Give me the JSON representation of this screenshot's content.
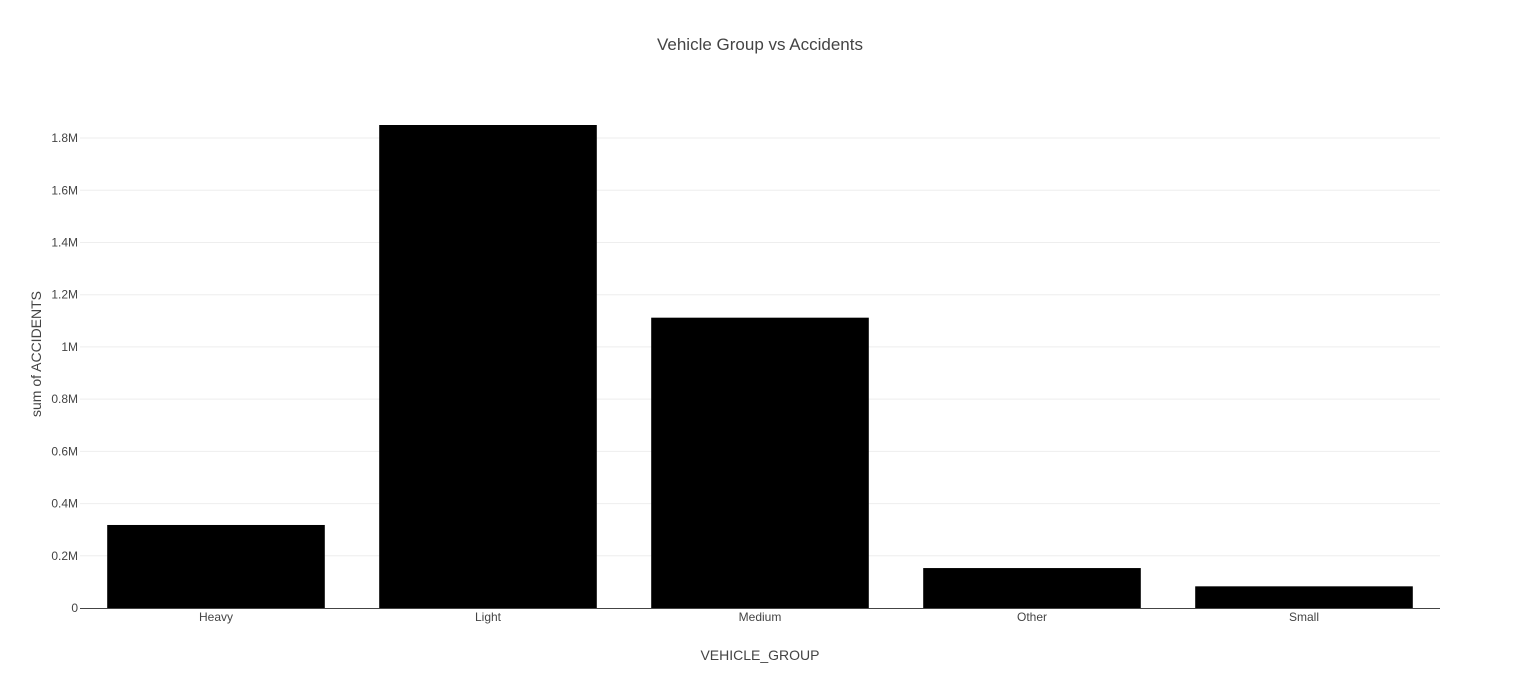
{
  "chart_data": {
    "type": "bar",
    "title": "Vehicle Group vs Accidents",
    "xlabel": "VEHICLE_GROUP",
    "ylabel": "sum of ACCIDENTS",
    "categories": [
      "Heavy",
      "Light",
      "Medium",
      "Other",
      "Small"
    ],
    "values": [
      318000,
      1850000,
      1112000,
      153000,
      83000
    ],
    "ylim": [
      0,
      1850000
    ],
    "yticks": [
      0,
      200000,
      400000,
      600000,
      800000,
      1000000,
      1200000,
      1400000,
      1600000,
      1800000
    ],
    "ytick_labels": [
      "0",
      "0.2M",
      "0.4M",
      "0.6M",
      "0.8M",
      "1M",
      "1.2M",
      "1.4M",
      "1.6M",
      "1.8M"
    ],
    "grid": true,
    "legend": "none",
    "bar_color": "#000000"
  }
}
